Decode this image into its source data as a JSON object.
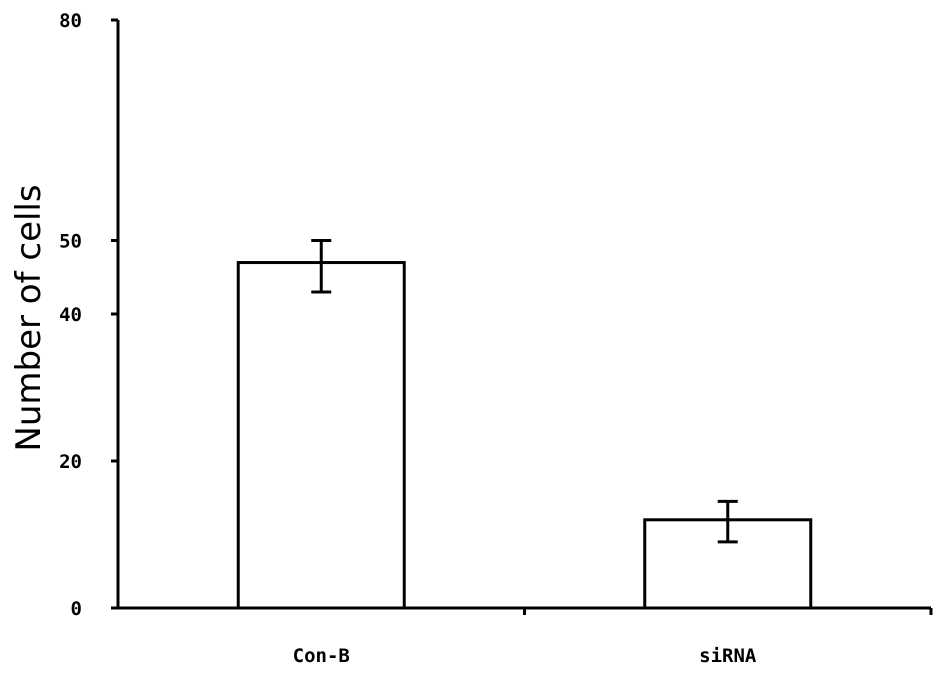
{
  "chart_data": {
    "type": "bar",
    "categories": [
      "Con-B",
      "siRNA"
    ],
    "values": [
      47,
      12
    ],
    "errors": [
      [
        43,
        50
      ],
      [
        9,
        14.5
      ]
    ],
    "title": "",
    "xlabel": "",
    "ylabel": "Number of cells",
    "ylim": [
      0,
      80
    ],
    "yticks": [
      0,
      20,
      40,
      50,
      80
    ],
    "ytick_labels": [
      "0",
      "20",
      "40",
      "50",
      "80"
    ],
    "grid": false,
    "legend": "none",
    "colors": {
      "bar_fill": "#ffffff",
      "bar_stroke": "#000000",
      "axis": "#000000"
    }
  }
}
